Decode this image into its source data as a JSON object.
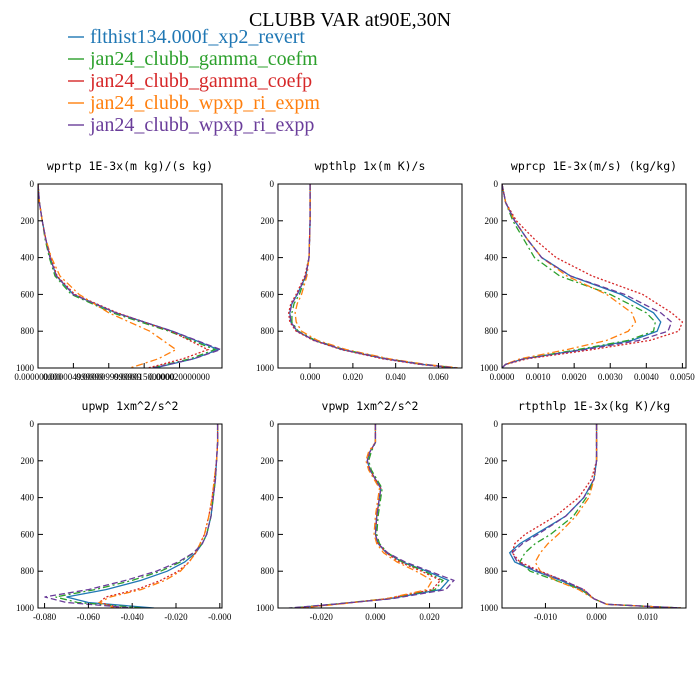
{
  "figure": {
    "title": "CLUBB VAR at90E,30N"
  },
  "legend": [
    {
      "label": "flthist134.000f_xp2_revert",
      "color": "#1f77b4",
      "dash": "solid"
    },
    {
      "label": "jan24_clubb_gamma_coefm",
      "color": "#2ca02c",
      "dash": "dashdot"
    },
    {
      "label": "jan24_clubb_gamma_coefp",
      "color": "#d62728",
      "dash": "dotted"
    },
    {
      "label": "jan24_clubb_wpxp_ri_expm",
      "color": "#ff7f0e",
      "dash": "dashdot"
    },
    {
      "label": "jan24_clubb_wpxp_ri_expp",
      "color": "#6a3d9a",
      "dash": "dashed"
    }
  ],
  "chart_data": [
    {
      "type": "line",
      "title": "wprtp  1E-3x(m kg)/(s kg)",
      "xlim": [
        0,
        2.6e-05
      ],
      "ylim": [
        0,
        1000
      ],
      "y_inverted": true,
      "xticks": [
        "0.000000000",
        "0.000004999999",
        "0.0000099999999",
        "0.000015000000",
        "0.000020000000"
      ],
      "xtick_values": [
        0,
        5e-06,
        1e-05,
        1.5e-05,
        2e-05
      ],
      "yticks": [
        "0",
        "200",
        "400",
        "600",
        "800",
        "1000"
      ],
      "y": [
        0,
        100,
        200,
        300,
        400,
        500,
        600,
        700,
        800,
        900,
        950,
        1000
      ],
      "series": [
        {
          "values": [
            0,
            2e-07,
            6e-07,
            1.1e-06,
            1.7e-06,
            2.6e-06,
            5e-06,
            1.1e-05,
            1.9e-05,
            2.55e-05,
            2.2e-05,
            1.65e-05
          ]
        },
        {
          "values": [
            0,
            2e-07,
            6e-07,
            1e-06,
            1.6e-06,
            2.4e-06,
            4.7e-06,
            1.05e-05,
            1.85e-05,
            2.5e-05,
            2.15e-05,
            1.6e-05
          ]
        },
        {
          "values": [
            0,
            2e-07,
            6e-07,
            1.1e-06,
            1.8e-06,
            2.7e-06,
            5.2e-06,
            1.12e-05,
            1.88e-05,
            2.4e-05,
            2.05e-05,
            1.55e-05
          ]
        },
        {
          "values": [
            0,
            2e-07,
            6e-07,
            1.1e-06,
            1.9e-06,
            3.1e-06,
            5.8e-06,
            1e-05,
            1.58e-05,
            1.95e-05,
            1.7e-05,
            1.3e-05
          ]
        },
        {
          "values": [
            0,
            2e-07,
            6e-07,
            1.1e-06,
            1.7e-06,
            2.6e-06,
            5e-06,
            1.1e-05,
            1.9e-05,
            2.58e-05,
            2.2e-05,
            1.62e-05
          ]
        }
      ]
    },
    {
      "type": "line",
      "title": "wpthlp  1x(m K)/s",
      "xlim": [
        -0.015,
        0.071
      ],
      "ylim": [
        0,
        1000
      ],
      "y_inverted": true,
      "xticks": [
        "0.000",
        "0.020",
        "0.040",
        "0.060"
      ],
      "xtick_values": [
        0,
        0.02,
        0.04,
        0.06
      ],
      "yticks": [
        "0",
        "200",
        "400",
        "600",
        "800",
        "1000"
      ],
      "y": [
        0,
        200,
        400,
        500,
        600,
        650,
        700,
        750,
        800,
        850,
        900,
        950,
        980,
        1000
      ],
      "series": [
        {
          "values": [
            0,
            0,
            -0.0005,
            -0.002,
            -0.006,
            -0.0085,
            -0.0095,
            -0.009,
            -0.006,
            0.002,
            0.015,
            0.035,
            0.052,
            0.068
          ]
        },
        {
          "values": [
            0,
            0,
            -0.0005,
            -0.002,
            -0.005,
            -0.0075,
            -0.0085,
            -0.0085,
            -0.0055,
            0.0025,
            0.016,
            0.036,
            0.053,
            0.069
          ]
        },
        {
          "values": [
            0,
            0,
            -0.0005,
            -0.0025,
            -0.0065,
            -0.009,
            -0.01,
            -0.0095,
            -0.0065,
            0.0015,
            0.0145,
            0.034,
            0.051,
            0.067
          ]
        },
        {
          "values": [
            0,
            0,
            -0.0005,
            -0.0015,
            -0.004,
            -0.006,
            -0.007,
            -0.0065,
            -0.004,
            0.0035,
            0.017,
            0.037,
            0.054,
            0.07
          ]
        },
        {
          "values": [
            0,
            0,
            -0.0005,
            -0.002,
            -0.006,
            -0.0085,
            -0.0095,
            -0.009,
            -0.006,
            0.002,
            0.0155,
            0.0355,
            0.0525,
            0.0685
          ]
        }
      ]
    },
    {
      "type": "line",
      "title": "wprcp  1E-3x(m/s) (kg/kg)",
      "xlim": [
        0,
        0.0051
      ],
      "ylim": [
        0,
        1000
      ],
      "y_inverted": true,
      "xticks": [
        "0.0000",
        "0.0010",
        "0.0020",
        "0.0030",
        "0.0040",
        "0.0050"
      ],
      "xtick_values": [
        0,
        0.001,
        0.002,
        0.003,
        0.004,
        0.005
      ],
      "yticks": [
        "0",
        "200",
        "400",
        "600",
        "800",
        "1000"
      ],
      "y": [
        0,
        100,
        200,
        300,
        400,
        500,
        600,
        700,
        750,
        800,
        850,
        900,
        950,
        980,
        1000
      ],
      "series": [
        {
          "values": [
            0,
            0.0001,
            0.00035,
            0.0007,
            0.0011,
            0.0019,
            0.0033,
            0.0042,
            0.0044,
            0.0043,
            0.0036,
            0.0022,
            0.0006,
            0.0001,
            0
          ]
        },
        {
          "values": [
            0,
            0.0001,
            0.0003,
            0.0006,
            0.0009,
            0.0016,
            0.003,
            0.004,
            0.00425,
            0.0042,
            0.0035,
            0.0021,
            0.0006,
            0.0001,
            0
          ]
        },
        {
          "values": [
            0,
            0.0001,
            0.0004,
            0.0009,
            0.0015,
            0.0025,
            0.0039,
            0.0047,
            0.005,
            0.0049,
            0.0041,
            0.0025,
            0.0007,
            0.0001,
            0
          ]
        },
        {
          "values": [
            0,
            0.0001,
            0.00035,
            0.0007,
            0.0011,
            0.0018,
            0.0029,
            0.0036,
            0.0037,
            0.0035,
            0.0029,
            0.0018,
            0.0005,
            0.0001,
            0
          ]
        },
        {
          "values": [
            0,
            0.0001,
            0.00035,
            0.0007,
            0.0011,
            0.0019,
            0.0034,
            0.0044,
            0.0047,
            0.0046,
            0.0038,
            0.0023,
            0.0006,
            0.0001,
            0
          ]
        }
      ]
    },
    {
      "type": "line",
      "title": "upwp  1xm^2/s^2",
      "xlim": [
        -0.083,
        0.001
      ],
      "ylim": [
        0,
        1000
      ],
      "y_inverted": true,
      "xticks": [
        "-0.080",
        "-0.060",
        "-0.040",
        "-0.020",
        "-0.000"
      ],
      "xtick_values": [
        -0.08,
        -0.06,
        -0.04,
        -0.02,
        0
      ],
      "yticks": [
        "0",
        "200",
        "400",
        "600",
        "800",
        "1000"
      ],
      "y": [
        0,
        100,
        200,
        300,
        400,
        500,
        600,
        650,
        700,
        750,
        800,
        850,
        900,
        940,
        970,
        1000
      ],
      "series": [
        {
          "values": [
            -0.001,
            -0.001,
            -0.0015,
            -0.002,
            -0.003,
            -0.004,
            -0.006,
            -0.008,
            -0.011,
            -0.016,
            -0.024,
            -0.036,
            -0.052,
            -0.07,
            -0.06,
            -0.03
          ]
        },
        {
          "values": [
            -0.001,
            -0.001,
            -0.0015,
            -0.002,
            -0.003,
            -0.004,
            -0.006,
            -0.008,
            -0.012,
            -0.018,
            -0.027,
            -0.04,
            -0.057,
            -0.075,
            -0.065,
            -0.035
          ]
        },
        {
          "values": [
            -0.001,
            -0.001,
            -0.0015,
            -0.0025,
            -0.0035,
            -0.005,
            -0.007,
            -0.009,
            -0.011,
            -0.014,
            -0.019,
            -0.027,
            -0.038,
            -0.052,
            -0.055,
            -0.045
          ]
        },
        {
          "values": [
            -0.001,
            -0.001,
            -0.0015,
            -0.0025,
            -0.0035,
            -0.005,
            -0.007,
            -0.009,
            -0.011,
            -0.014,
            -0.018,
            -0.025,
            -0.036,
            -0.05,
            -0.055,
            -0.048
          ]
        },
        {
          "values": [
            -0.001,
            -0.001,
            -0.0015,
            -0.002,
            -0.003,
            -0.004,
            -0.006,
            -0.008,
            -0.012,
            -0.019,
            -0.029,
            -0.043,
            -0.06,
            -0.08,
            -0.07,
            -0.04
          ]
        }
      ]
    },
    {
      "type": "line",
      "title": "vpwp  1xm^2/s^2",
      "xlim": [
        -0.036,
        0.032
      ],
      "ylim": [
        0,
        1000
      ],
      "y_inverted": true,
      "xticks": [
        "-0.020",
        "0.000",
        "0.020"
      ],
      "xtick_values": [
        -0.02,
        0,
        0.02
      ],
      "yticks": [
        "0",
        "200",
        "400",
        "600",
        "800",
        "1000"
      ],
      "y": [
        0,
        100,
        150,
        200,
        250,
        300,
        350,
        400,
        500,
        600,
        650,
        700,
        750,
        800,
        850,
        900,
        950,
        980,
        1000
      ],
      "series": [
        {
          "values": [
            0,
            0,
            -0.002,
            -0.003,
            -0.002,
            0,
            0.002,
            0.0015,
            0.0005,
            0,
            0.001,
            0.004,
            0.01,
            0.019,
            0.027,
            0.024,
            0.005,
            -0.015,
            -0.03
          ]
        },
        {
          "values": [
            0,
            0,
            -0.0015,
            -0.0025,
            -0.0015,
            0.0005,
            0.0025,
            0.002,
            0.001,
            0.0005,
            0.0015,
            0.0045,
            0.01,
            0.018,
            0.025,
            0.022,
            0.004,
            -0.016,
            -0.031
          ]
        },
        {
          "values": [
            0,
            0,
            -0.002,
            -0.003,
            -0.002,
            0,
            0.002,
            0.0015,
            0.0005,
            0,
            0.001,
            0.004,
            0.009,
            0.017,
            0.024,
            0.021,
            0.004,
            -0.015,
            -0.029
          ]
        },
        {
          "values": [
            0,
            0,
            -0.0025,
            -0.0035,
            -0.0025,
            -0.0005,
            0.0015,
            0.001,
            0,
            -0.0005,
            0.0005,
            0.003,
            0.008,
            0.015,
            0.021,
            0.019,
            0.004,
            -0.014,
            -0.028
          ]
        },
        {
          "values": [
            0,
            0,
            -0.002,
            -0.003,
            -0.002,
            0,
            0.002,
            0.0015,
            0.0005,
            0,
            0.001,
            0.0045,
            0.011,
            0.02,
            0.029,
            0.026,
            0.006,
            -0.016,
            -0.032
          ]
        }
      ]
    },
    {
      "type": "line",
      "title": "rtpthlp  1E-3x(kg K)/kg",
      "xlim": [
        -0.0185,
        0.0175
      ],
      "ylim": [
        0,
        1000
      ],
      "y_inverted": true,
      "xticks": [
        "-0.010",
        "0.000",
        "0.010"
      ],
      "xtick_values": [
        -0.01,
        0,
        0.01
      ],
      "yticks": [
        "0",
        "200",
        "400",
        "600",
        "800",
        "1000"
      ],
      "y": [
        0,
        200,
        300,
        400,
        500,
        600,
        650,
        700,
        750,
        800,
        850,
        900,
        950,
        980,
        1000
      ],
      "series": [
        {
          "values": [
            0,
            0,
            -0.0005,
            -0.0025,
            -0.006,
            -0.012,
            -0.015,
            -0.017,
            -0.016,
            -0.012,
            -0.007,
            -0.003,
            -0.0005,
            0.002,
            0.0165
          ]
        },
        {
          "values": [
            0,
            0,
            -0.0005,
            -0.002,
            -0.0045,
            -0.009,
            -0.012,
            -0.014,
            -0.015,
            -0.013,
            -0.008,
            -0.003,
            -0.0005,
            0.002,
            0.0165
          ]
        },
        {
          "values": [
            0,
            0,
            -0.001,
            -0.0035,
            -0.008,
            -0.014,
            -0.016,
            -0.0165,
            -0.015,
            -0.011,
            -0.0065,
            -0.0025,
            -0.0005,
            0.002,
            0.0165
          ]
        },
        {
          "values": [
            0,
            0,
            -0.0005,
            -0.0015,
            -0.004,
            -0.0075,
            -0.0095,
            -0.011,
            -0.012,
            -0.011,
            -0.008,
            -0.0035,
            -0.0005,
            0.002,
            0.0165
          ]
        },
        {
          "values": [
            0,
            0,
            -0.0005,
            -0.0025,
            -0.006,
            -0.0115,
            -0.0145,
            -0.0165,
            -0.0155,
            -0.0115,
            -0.0065,
            -0.0025,
            -0.0005,
            0.002,
            0.0165
          ]
        }
      ]
    }
  ]
}
